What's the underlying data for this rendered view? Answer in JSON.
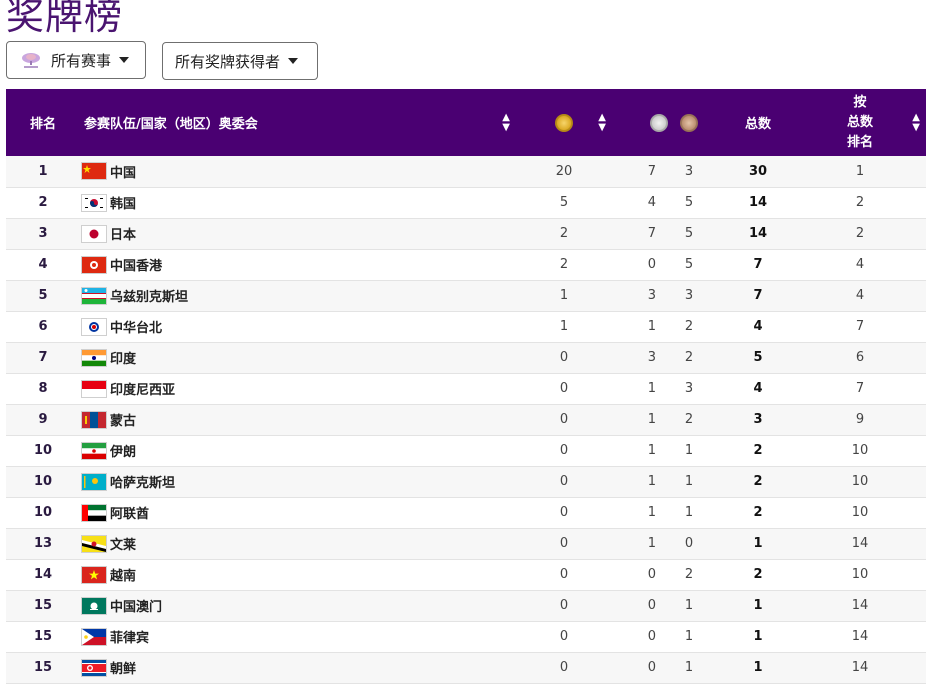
{
  "page": {
    "title": "奖牌榜"
  },
  "filters": {
    "events_label": "所有赛事",
    "medalists_label": "所有奖牌获得者"
  },
  "table": {
    "headers": {
      "rank": "排名",
      "team": "参赛队伍/国家（地区）奥委会",
      "total": "总数",
      "rank_by_total": [
        "按",
        "总数",
        "排名"
      ]
    },
    "medal_icons": [
      "gold-medal-icon",
      "silver-medal-icon",
      "bronze-medal-icon"
    ],
    "colors": {
      "header_bg": "#4a0072",
      "title": "#4a1470"
    },
    "rows": [
      {
        "rank": "1",
        "flag": "china",
        "team": "中国",
        "gold": "20",
        "silver": "7",
        "bronze": "3",
        "total": "30",
        "rank_by_total": "1"
      },
      {
        "rank": "2",
        "flag": "korea",
        "team": "韩国",
        "gold": "5",
        "silver": "4",
        "bronze": "5",
        "total": "14",
        "rank_by_total": "2"
      },
      {
        "rank": "3",
        "flag": "japan",
        "team": "日本",
        "gold": "2",
        "silver": "7",
        "bronze": "5",
        "total": "14",
        "rank_by_total": "2"
      },
      {
        "rank": "4",
        "flag": "hongkong",
        "team": "中国香港",
        "gold": "2",
        "silver": "0",
        "bronze": "5",
        "total": "7",
        "rank_by_total": "4"
      },
      {
        "rank": "5",
        "flag": "uzbekistan",
        "team": "乌兹别克斯坦",
        "gold": "1",
        "silver": "3",
        "bronze": "3",
        "total": "7",
        "rank_by_total": "4"
      },
      {
        "rank": "6",
        "flag": "chinese-taipei",
        "team": "中华台北",
        "gold": "1",
        "silver": "1",
        "bronze": "2",
        "total": "4",
        "rank_by_total": "7"
      },
      {
        "rank": "7",
        "flag": "india",
        "team": "印度",
        "gold": "0",
        "silver": "3",
        "bronze": "2",
        "total": "5",
        "rank_by_total": "6"
      },
      {
        "rank": "8",
        "flag": "indonesia",
        "team": "印度尼西亚",
        "gold": "0",
        "silver": "1",
        "bronze": "3",
        "total": "4",
        "rank_by_total": "7"
      },
      {
        "rank": "9",
        "flag": "mongolia",
        "team": "蒙古",
        "gold": "0",
        "silver": "1",
        "bronze": "2",
        "total": "3",
        "rank_by_total": "9"
      },
      {
        "rank": "10",
        "flag": "iran",
        "team": "伊朗",
        "gold": "0",
        "silver": "1",
        "bronze": "1",
        "total": "2",
        "rank_by_total": "10"
      },
      {
        "rank": "10",
        "flag": "kazakhstan",
        "team": "哈萨克斯坦",
        "gold": "0",
        "silver": "1",
        "bronze": "1",
        "total": "2",
        "rank_by_total": "10"
      },
      {
        "rank": "10",
        "flag": "uae",
        "team": "阿联酋",
        "gold": "0",
        "silver": "1",
        "bronze": "1",
        "total": "2",
        "rank_by_total": "10"
      },
      {
        "rank": "13",
        "flag": "brunei",
        "team": "文莱",
        "gold": "0",
        "silver": "1",
        "bronze": "0",
        "total": "1",
        "rank_by_total": "14"
      },
      {
        "rank": "14",
        "flag": "vietnam",
        "team": "越南",
        "gold": "0",
        "silver": "0",
        "bronze": "2",
        "total": "2",
        "rank_by_total": "10"
      },
      {
        "rank": "15",
        "flag": "macao",
        "team": "中国澳门",
        "gold": "0",
        "silver": "0",
        "bronze": "1",
        "total": "1",
        "rank_by_total": "14"
      },
      {
        "rank": "15",
        "flag": "philippines",
        "team": "菲律宾",
        "gold": "0",
        "silver": "0",
        "bronze": "1",
        "total": "1",
        "rank_by_total": "14"
      },
      {
        "rank": "15",
        "flag": "dprk",
        "team": "朝鲜",
        "gold": "0",
        "silver": "0",
        "bronze": "1",
        "total": "1",
        "rank_by_total": "14"
      }
    ]
  }
}
